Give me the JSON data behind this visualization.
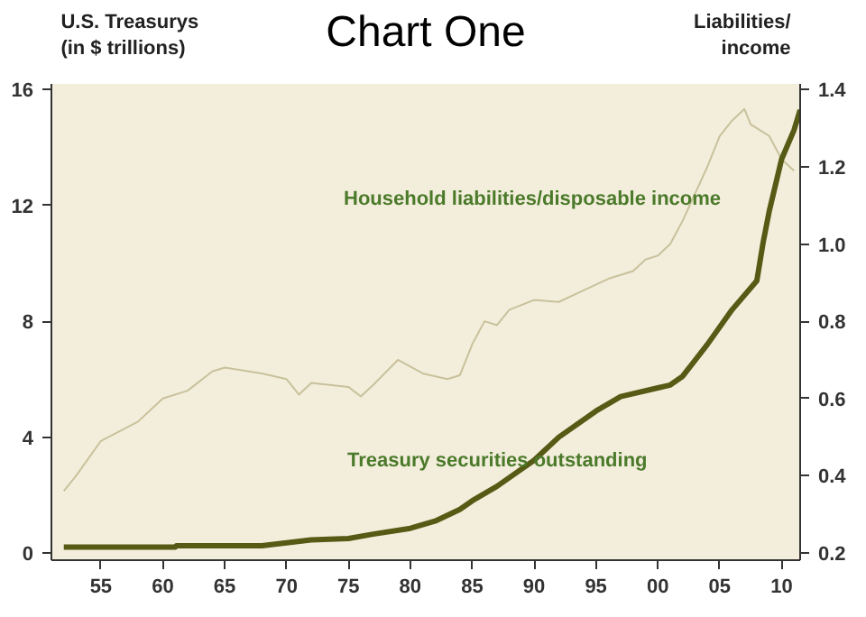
{
  "chart_data": {
    "type": "line",
    "title": "Chart One",
    "ylabel": "U.S. Treasurys\n(in $ trillions)",
    "y2label": "Liabilities/\nincome",
    "xlim": [
      1951,
      2011.5
    ],
    "xticks": [
      {
        "value": 1955,
        "label": "55"
      },
      {
        "value": 1960,
        "label": "60"
      },
      {
        "value": 1965,
        "label": "65"
      },
      {
        "value": 1970,
        "label": "70"
      },
      {
        "value": 1975,
        "label": "75"
      },
      {
        "value": 1980,
        "label": "80"
      },
      {
        "value": 1985,
        "label": "85"
      },
      {
        "value": 1990,
        "label": "90"
      },
      {
        "value": 1995,
        "label": "95"
      },
      {
        "value": 2000,
        "label": "00"
      },
      {
        "value": 2005,
        "label": "05"
      },
      {
        "value": 2010,
        "label": "10"
      }
    ],
    "ylim": [
      -0.25,
      16.2
    ],
    "yticks": [
      0,
      4,
      8,
      12,
      16
    ],
    "y2lim": [
      0.181,
      1.415
    ],
    "y2ticks": [
      {
        "value": 0.2,
        "label": "0.2"
      },
      {
        "value": 0.4,
        "label": "0.4"
      },
      {
        "value": 0.6,
        "label": "0.6"
      },
      {
        "value": 0.8,
        "label": "0.8"
      },
      {
        "value": 1.0,
        "label": "1.0"
      },
      {
        "value": 1.2,
        "label": "1.2"
      },
      {
        "value": 1.4,
        "label": "1.4"
      }
    ],
    "grid": false,
    "series": [
      {
        "name": "Household liabilities/disposable income",
        "color": "#c9c19b",
        "axis": "y2",
        "x": [
          1952,
          1953,
          1955,
          1958,
          1960,
          1962,
          1964,
          1965,
          1968,
          1970,
          1971,
          1972,
          1975,
          1976,
          1977,
          1979,
          1981,
          1983,
          1984,
          1985,
          1986,
          1987,
          1988,
          1990,
          1992,
          1994,
          1996,
          1998,
          1999,
          2000,
          2001,
          2002,
          2003,
          2004,
          2005,
          2006,
          2007,
          2007.5,
          2008,
          2009,
          2010,
          2011
        ],
        "values": [
          0.36,
          0.4,
          0.49,
          0.54,
          0.6,
          0.62,
          0.67,
          0.68,
          0.665,
          0.65,
          0.61,
          0.64,
          0.63,
          0.605,
          0.635,
          0.7,
          0.665,
          0.65,
          0.66,
          0.74,
          0.8,
          0.79,
          0.83,
          0.855,
          0.85,
          0.88,
          0.91,
          0.93,
          0.96,
          0.97,
          1.0,
          1.06,
          1.13,
          1.2,
          1.28,
          1.32,
          1.35,
          1.31,
          1.3,
          1.28,
          1.22,
          1.19
        ]
      },
      {
        "name": "Treasury securities outstanding",
        "color": "#555a14",
        "x": [
          1952,
          1961,
          1961.1,
          1968,
          1970,
          1972,
          1975,
          1977,
          1980,
          1982,
          1984,
          1985,
          1987,
          1990,
          1992,
          1995,
          1997,
          2000,
          2001,
          2002,
          2004,
          2006,
          2008,
          2008.5,
          2009,
          2010,
          2011,
          2011.5
        ],
        "values": [
          0.2,
          0.2,
          0.25,
          0.25,
          0.35,
          0.45,
          0.5,
          0.65,
          0.85,
          1.1,
          1.5,
          1.8,
          2.3,
          3.2,
          4.0,
          4.9,
          5.4,
          5.7,
          5.8,
          6.1,
          7.2,
          8.4,
          9.4,
          10.7,
          11.8,
          13.6,
          14.6,
          15.3
        ]
      }
    ]
  }
}
